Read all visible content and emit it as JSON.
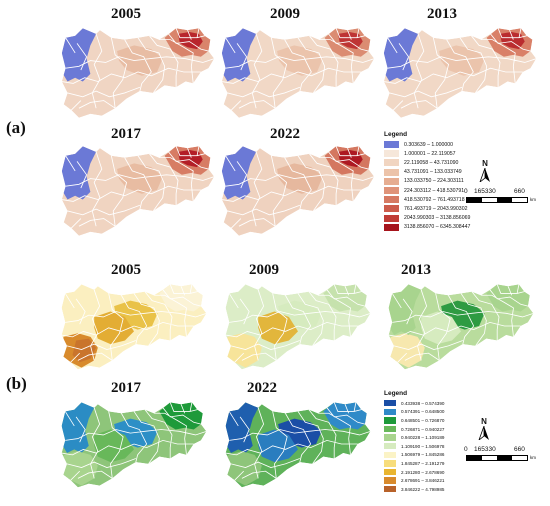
{
  "panels": [
    {
      "label": "(a)",
      "years": [
        "2005",
        "2009",
        "2013",
        "2017",
        "2022"
      ]
    },
    {
      "label": "(b)",
      "years": [
        "2005",
        "2009",
        "2013",
        "2017",
        "2022"
      ]
    }
  ],
  "legend_a": {
    "title": "Legend",
    "items": [
      {
        "label": "0.303639 – 1.000000",
        "color": "#6b79d6"
      },
      {
        "label": "1.000001 – 22.119057",
        "color": "#f6e7da"
      },
      {
        "label": "22.119058 – 43.731090",
        "color": "#f1d5c1"
      },
      {
        "label": "43.731091 – 133.033749",
        "color": "#ecc3a9"
      },
      {
        "label": "133.033750 – 224.303111",
        "color": "#e6ad91"
      },
      {
        "label": "224.303112 – 418.530791",
        "color": "#df9379"
      },
      {
        "label": "418.530792 – 761.493718",
        "color": "#d67a63"
      },
      {
        "label": "761.493719 – 2043.990302",
        "color": "#cc5c4c"
      },
      {
        "label": "2043.990303 – 3138.856069",
        "color": "#c03c36"
      },
      {
        "label": "3138.856070 – 6345.308447",
        "color": "#a6141c"
      }
    ]
  },
  "legend_b": {
    "title": "Legend",
    "items": [
      {
        "label": "0.433938 – 0.574390",
        "color": "#1b4ea6"
      },
      {
        "label": "0.574391 – 0.648500",
        "color": "#2f8ac8"
      },
      {
        "label": "0.648501 – 0.726870",
        "color": "#1e9a3a"
      },
      {
        "label": "0.726871 – 0.940227",
        "color": "#68b85a"
      },
      {
        "label": "0.940228 – 1.109189",
        "color": "#a8d48e"
      },
      {
        "label": "1.109190 – 1.506978",
        "color": "#d6ebbf"
      },
      {
        "label": "1.506979 – 1.845286",
        "color": "#fbf3c6"
      },
      {
        "label": "1.845287 – 2.191279",
        "color": "#f7dd7c"
      },
      {
        "label": "2.191280 – 2.678690",
        "color": "#e9b530"
      },
      {
        "label": "2.678691 – 3.846221",
        "color": "#d88a2c"
      },
      {
        "label": "3.846222 – 4.798985",
        "color": "#b8622a"
      }
    ]
  },
  "north": {
    "letter": "N"
  },
  "scale": {
    "ticks": [
      "0",
      "165330",
      "660"
    ],
    "unit": "km"
  }
}
